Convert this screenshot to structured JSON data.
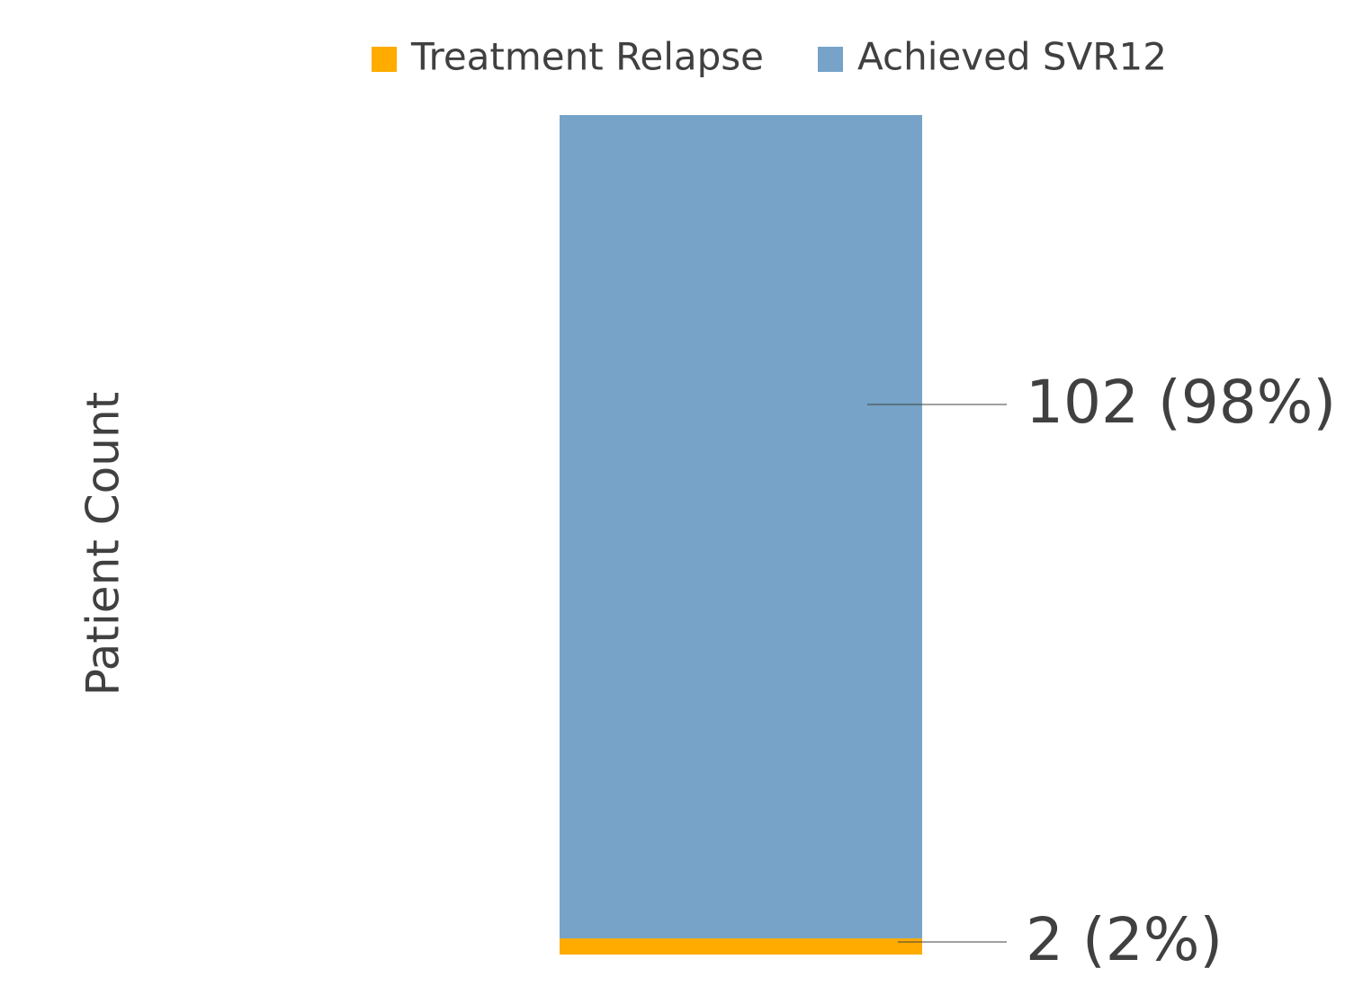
{
  "chart_data": {
    "type": "stacked-bar",
    "y_label": "Patient Count",
    "categories": [
      null
    ],
    "series": [
      {
        "name": "Treatment Relapse",
        "color": "#FFAB00",
        "values": [
          2
        ],
        "value_labels": [
          "2 (2%)"
        ]
      },
      {
        "name": "Achieved SVR12",
        "color": "#76A3C7",
        "values": [
          102
        ],
        "value_labels": [
          "102 (98%)"
        ]
      }
    ],
    "ylim": [
      0,
      104
    ],
    "legend": "top"
  }
}
